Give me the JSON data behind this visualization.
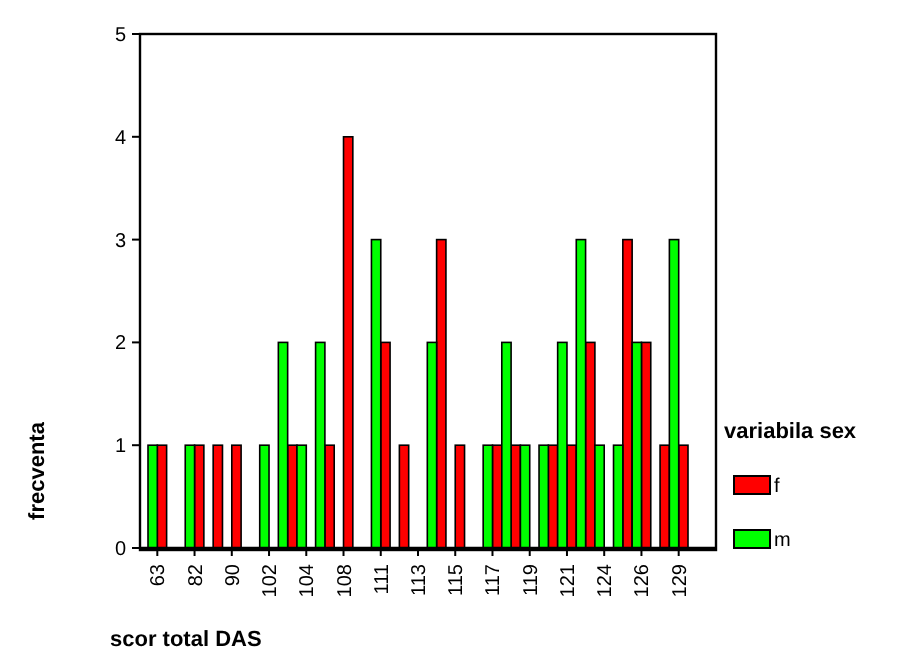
{
  "chart_data": {
    "type": "bar",
    "xlabel": "scor total DAS",
    "ylabel": "frecventa",
    "legend_title": "variabila sex",
    "categories": [
      "63",
      null,
      "82",
      null,
      "90",
      null,
      "102",
      null,
      "104",
      null,
      "108",
      null,
      "111",
      null,
      "113",
      null,
      "115",
      null,
      "117",
      null,
      "119",
      null,
      "121",
      null,
      "124",
      null,
      "126",
      null,
      "129"
    ],
    "series": [
      {
        "name": "f",
        "color": "#ff0000",
        "values": [
          1,
          0,
          1,
          1,
          1,
          0,
          0,
          1,
          0,
          1,
          4,
          0,
          2,
          1,
          0,
          3,
          1,
          0,
          1,
          1,
          0,
          1,
          1,
          2,
          0,
          3,
          2,
          1,
          1
        ]
      },
      {
        "name": "m",
        "color": "#00ff00",
        "values": [
          1,
          0,
          1,
          0,
          0,
          0,
          1,
          2,
          1,
          2,
          0,
          0,
          3,
          0,
          0,
          2,
          0,
          0,
          1,
          2,
          1,
          1,
          2,
          3,
          1,
          1,
          2,
          0,
          3
        ]
      }
    ],
    "ylim": [
      0,
      5
    ],
    "yticks": [
      0,
      1,
      2,
      3,
      4,
      5
    ],
    "grid": false,
    "legend": "right"
  }
}
